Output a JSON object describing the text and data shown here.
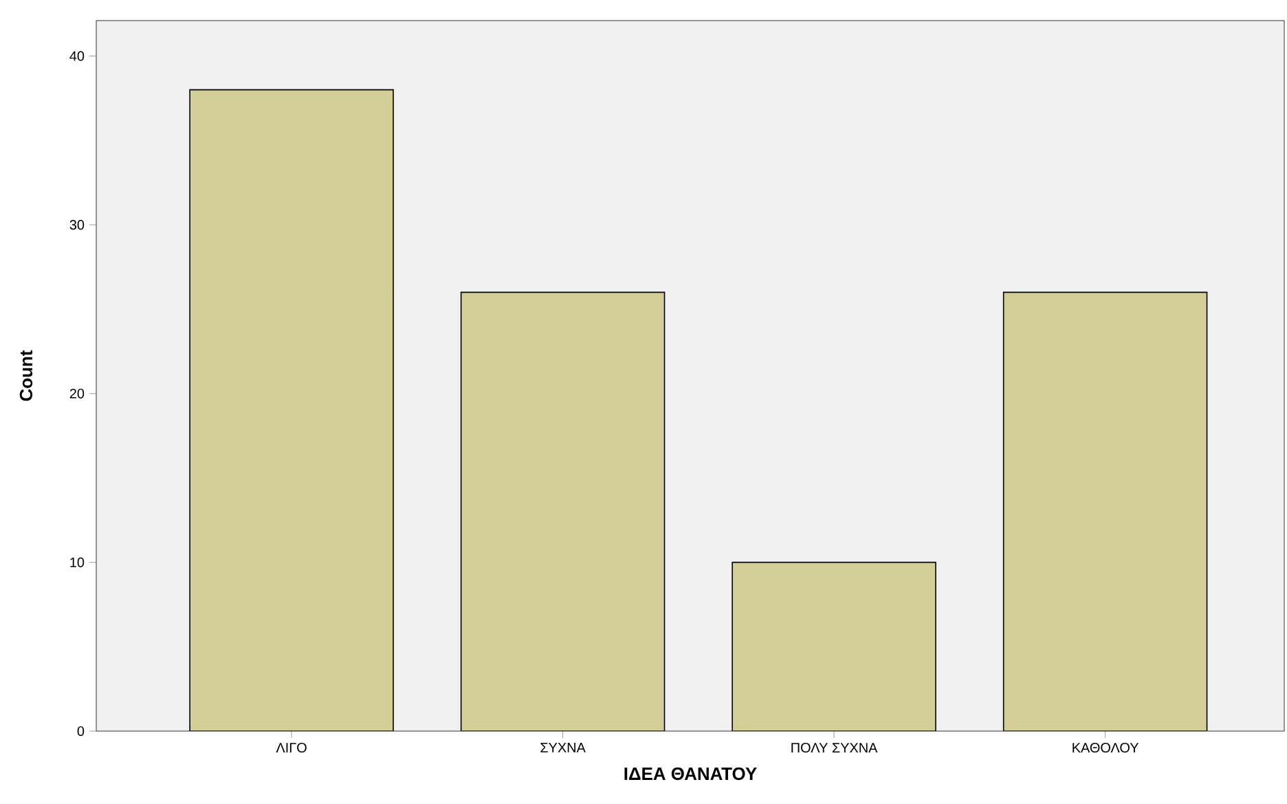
{
  "chart_data": {
    "type": "bar",
    "xlabel": "ΙΔΕΑ ΘΑΝΑΤΟΥ",
    "ylabel": "Count",
    "categories": [
      "ΛΙΓΟ",
      "ΣΥΧΝΑ",
      "ΠΟΛΥ ΣΥΧΝΑ",
      "ΚΑΘΟΛΟΥ"
    ],
    "values": [
      38,
      26,
      10,
      26
    ],
    "color": "#d3ce97",
    "ylim": [
      0,
      42.1
    ],
    "yticks": [
      0,
      10,
      20,
      30,
      40
    ]
  }
}
